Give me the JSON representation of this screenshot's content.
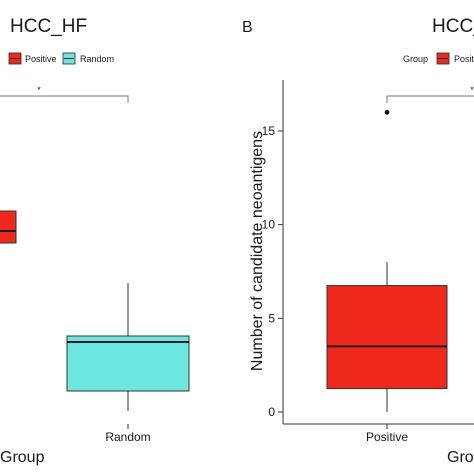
{
  "chart_data": [
    {
      "panel_letter": "",
      "title": "HCC_HF",
      "type": "box",
      "xlabel": "Group",
      "ylabel": "",
      "legend": {
        "title": "",
        "placement": "top",
        "entries": [
          {
            "name": "Positive",
            "color": "#f0281c"
          },
          {
            "name": "Random",
            "color": "#6ce6e0"
          }
        ]
      },
      "categories": [
        "Positive",
        "Random"
      ],
      "category_labels_visible": [
        "",
        "Random"
      ],
      "boxes": [
        {
          "name": "Positive",
          "q1": 9.5,
          "median": 10.0,
          "q3": 11.0,
          "color": "#f0281c"
        },
        {
          "name": "Random",
          "whisker_low": 0.0,
          "q1": 1.5,
          "median": 4.7,
          "q3": 5.0,
          "whisker_high": 10.0,
          "color": "#6ce6e0"
        }
      ],
      "significance": "*"
    },
    {
      "panel_letter": "B",
      "title": "HCC_",
      "type": "box",
      "xlabel": "Gro",
      "ylabel": "Number of candidate neoantigens",
      "ylim": [
        0,
        17
      ],
      "yticks": [
        "0",
        "5",
        "10",
        "15"
      ],
      "legend": {
        "title": "Group",
        "placement": "top",
        "entries": [
          {
            "name": "Positi",
            "color": "#f0281c"
          }
        ]
      },
      "categories": [
        "Positive"
      ],
      "boxes": [
        {
          "name": "Positive",
          "whisker_low": 0,
          "q1": 1.25,
          "median": 3.5,
          "q3": 6.75,
          "whisker_high": 8,
          "outliers": [
            16
          ],
          "color": "#f0281c"
        }
      ],
      "significance": "*"
    }
  ]
}
